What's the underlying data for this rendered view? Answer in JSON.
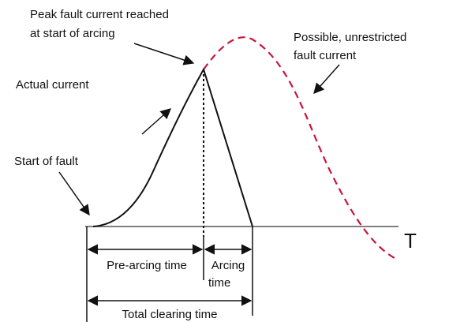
{
  "labels": {
    "peak_line1": "Peak fault current reached",
    "peak_line2": "at start of arcing",
    "possible_line1": "Possible, unrestricted",
    "possible_line2": "fault current",
    "actual": "Actual current",
    "start": "Start of fault",
    "axis": "T",
    "pre_arcing": "Pre-arcing time",
    "arcing_line1": "Arcing",
    "arcing_line2": "time",
    "total": "Total clearing time"
  }
}
